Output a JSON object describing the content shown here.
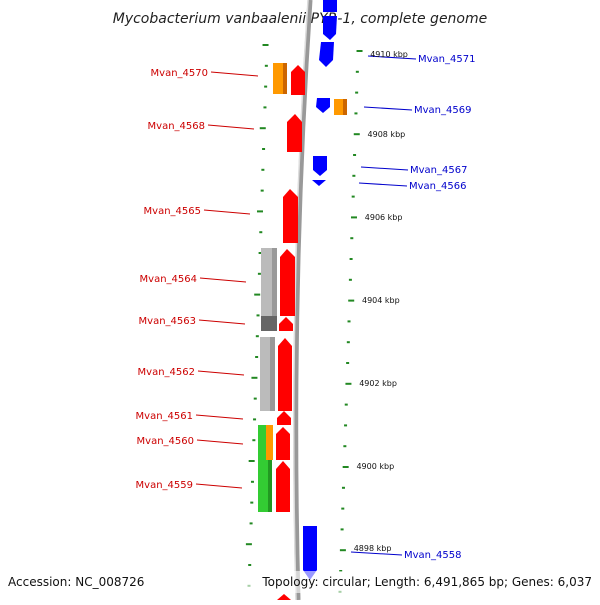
{
  "title": "Mycobacterium vanbaalenii PYR-1, complete genome",
  "accession_text": "Accession: NC_008726",
  "topology_text": "Topology: circular; Length: 6,491,865 bp; Genes: 6,037",
  "colors": {
    "forward_gene": "#ff0000",
    "reverse_gene": "#0000ff",
    "rna": "#ff9900",
    "grey": "#bbbbbb",
    "dark_grey": "#666666",
    "green": "#33cc33",
    "tick": "#228822",
    "backbone": "#999999"
  },
  "kbp_labels": [
    "4910 kbp",
    "4908 kbp",
    "4906 kbp",
    "4904 kbp",
    "4902 kbp",
    "4900 kbp",
    "4898 kbp"
  ],
  "left_labels": [
    "Mvan_4570",
    "Mvan_4568",
    "Mvan_4565",
    "Mvan_4564",
    "Mvan_4563",
    "Mvan_4562",
    "Mvan_4561",
    "Mvan_4560",
    "Mvan_4559"
  ],
  "right_labels": [
    "Mvan_4571",
    "Mvan_4569",
    "Mvan_4567",
    "Mvan_4566",
    "Mvan_4558"
  ]
}
